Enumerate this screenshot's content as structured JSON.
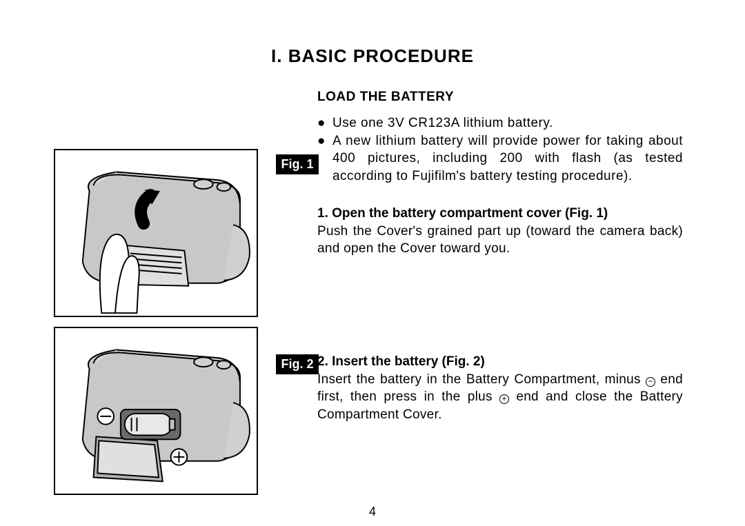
{
  "page": {
    "title": "I.  BASIC  PROCEDURE",
    "number": "4"
  },
  "section": {
    "heading": "LOAD THE BATTERY",
    "bullets": [
      "Use one 3V CR123A lithium battery.",
      "A new lithium battery will provide power for taking about 400 pictures, including 200 with flash (as tested according to Fujifilm's battery testing procedure)."
    ]
  },
  "steps": [
    {
      "fig_label": "Fig. 1",
      "title": "1. Open the battery compartment cover (Fig. 1)",
      "body": "Push the Cover's grained part up (toward the camera back) and open the Cover toward you."
    },
    {
      "fig_label": "Fig. 2",
      "title": "2. Insert the battery (Fig. 2)",
      "body_html": "Insert the battery in the Battery Compartment, minus <span class=\"circ\">&minus;</span> end first, then press in the plus <span class=\"circ\">+</span> end and close the Battery Compartment Cover."
    }
  ],
  "figures": {
    "style": {
      "border_color": "#000000",
      "background": "#ffffff",
      "fill_gray": "#c8c8c8",
      "stroke": "#000000"
    }
  }
}
